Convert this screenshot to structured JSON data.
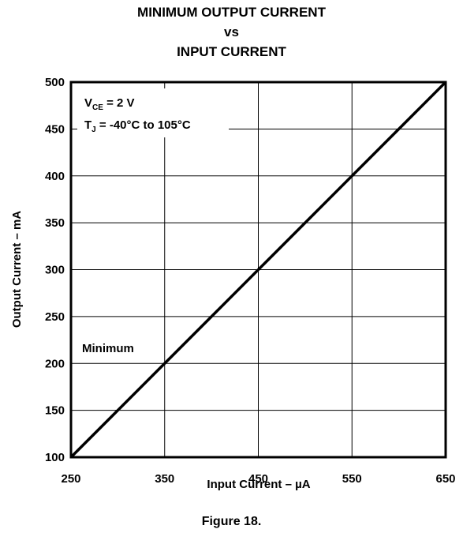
{
  "chart_data": {
    "type": "line",
    "title_lines": [
      "MINIMUM OUTPUT CURRENT",
      "vs",
      "INPUT CURRENT"
    ],
    "xlabel": "Input Current – µA",
    "ylabel": "Output Current – mA",
    "xlim": [
      250,
      650
    ],
    "ylim": [
      100,
      500
    ],
    "xticks": [
      250,
      350,
      450,
      550,
      650
    ],
    "yticks": [
      100,
      150,
      200,
      250,
      300,
      350,
      400,
      450,
      500
    ],
    "grid": true,
    "series": [
      {
        "name": "Minimum",
        "x": [
          250,
          650
        ],
        "y": [
          100,
          500
        ]
      }
    ],
    "annotations": {
      "vce_prefix": "V",
      "vce_sub": "CE",
      "vce_value": " = 2 V",
      "tj_prefix": "T",
      "tj_sub": "J",
      "tj_value": " = -40°C to 105°C"
    }
  },
  "caption": "Figure 18."
}
